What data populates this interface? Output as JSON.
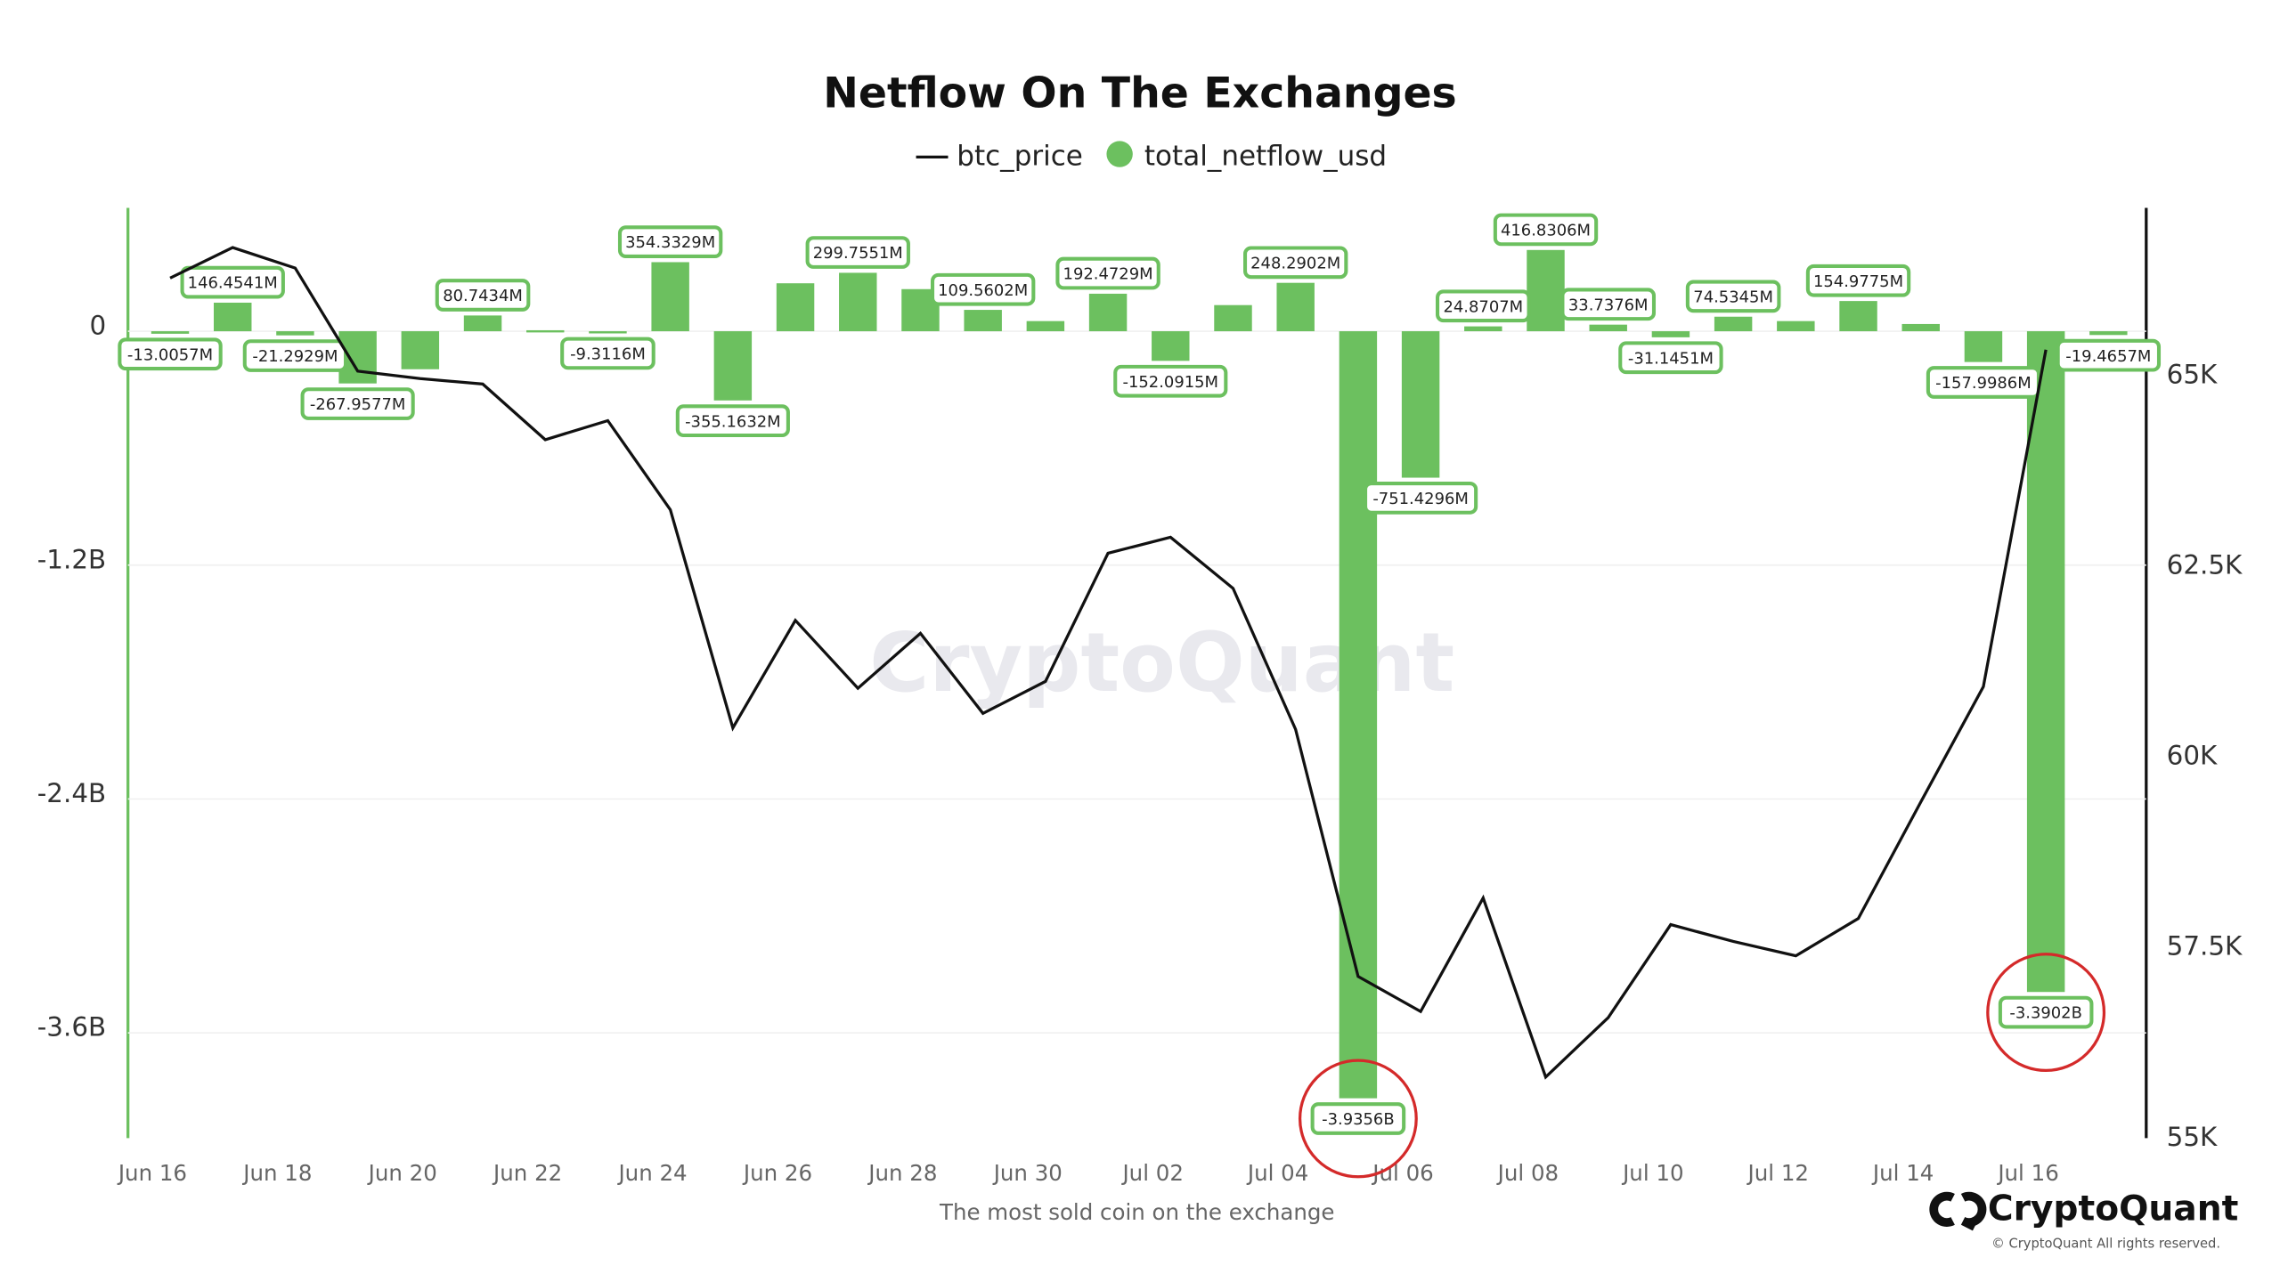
{
  "chart_data": {
    "type": "bar",
    "title": "Netflow On The Exchanges",
    "xlabel": "The most sold coin on the exchange",
    "watermark": "CryptoQuant",
    "brand": "CryptoQuant",
    "copyright": "© CryptoQuant All rights reserved.",
    "categories": [
      "Jun 16",
      null,
      "Jun 18",
      null,
      "Jun 20",
      null,
      "Jun 22",
      null,
      "Jun 24",
      null,
      "Jun 26",
      null,
      "Jun 28",
      null,
      "Jun 30",
      null,
      "Jul 02",
      null,
      "Jul 04",
      null,
      "Jul 06",
      null,
      "Jul 08",
      null,
      "Jul 10",
      null,
      "Jul 12",
      null,
      "Jul 14",
      null,
      "Jul 16",
      null
    ],
    "series": [
      {
        "name": "btc_price",
        "type": "line",
        "axis": "y2",
        "color": "#111111",
        "values": [
          66280,
          66680,
          66410,
          65060,
          64960,
          64890,
          64160,
          64410,
          63240,
          60380,
          61790,
          60900,
          61620,
          60570,
          60990,
          62670,
          62880,
          62210,
          60360,
          57120,
          56660,
          58150,
          55800,
          56580,
          57800,
          57580,
          57390,
          57880,
          59410,
          60920,
          65340,
          null
        ]
      },
      {
        "name": "total_netflow_usd",
        "type": "bar",
        "color": "#6cc05f",
        "values": [
          -13005700,
          146454100,
          -21292900,
          -267957700,
          -195000000,
          80743400,
          5000000,
          -9311600,
          354332900,
          -355163200,
          246000000,
          299755100,
          216000000,
          109560200,
          52000000,
          192472900,
          -152091500,
          134000000,
          248290200,
          -3935600000,
          -751429600,
          24870700,
          416830600,
          33737600,
          -31145100,
          74534500,
          52000000,
          154977500,
          37000000,
          -157998600,
          -3390200000,
          -19465700
        ],
        "value_labels": [
          "-13.0057M",
          "146.4541M",
          "-21.2929M",
          "-267.9577M",
          null,
          "80.7434M",
          null,
          "-9.3116M",
          "354.3329M",
          "-355.1632M",
          null,
          "299.7551M",
          null,
          "109.5602M",
          null,
          "192.4729M",
          "-152.0915M",
          null,
          "248.2902M",
          "-3.9356B",
          "-751.4296M",
          "24.8707M",
          "416.8306M",
          "33.7376M",
          "-31.1451M",
          "74.5345M",
          null,
          "154.9775M",
          null,
          "-157.9986M",
          "-3.3902B",
          "-19.4657M"
        ]
      }
    ],
    "highlight_color": "#d42a2a",
    "ylim": [
      -4140000000,
      633000000
    ],
    "yticks": [
      0,
      {
        "value": -1200000000,
        "label": "-1.2B"
      },
      {
        "value": -2400000000,
        "label": "-2.4B"
      },
      {
        "value": -3600000000,
        "label": "-3.6B"
      }
    ],
    "y2lim": [
      55000,
      67200
    ],
    "y2ticks": [
      {
        "value": 55000,
        "label": "55K"
      },
      {
        "value": 57500,
        "label": "57.5K"
      },
      {
        "value": 60000,
        "label": "60K"
      },
      {
        "value": 62500,
        "label": "62.5K"
      },
      {
        "value": 65000,
        "label": "65K"
      }
    ],
    "grid": true
  }
}
